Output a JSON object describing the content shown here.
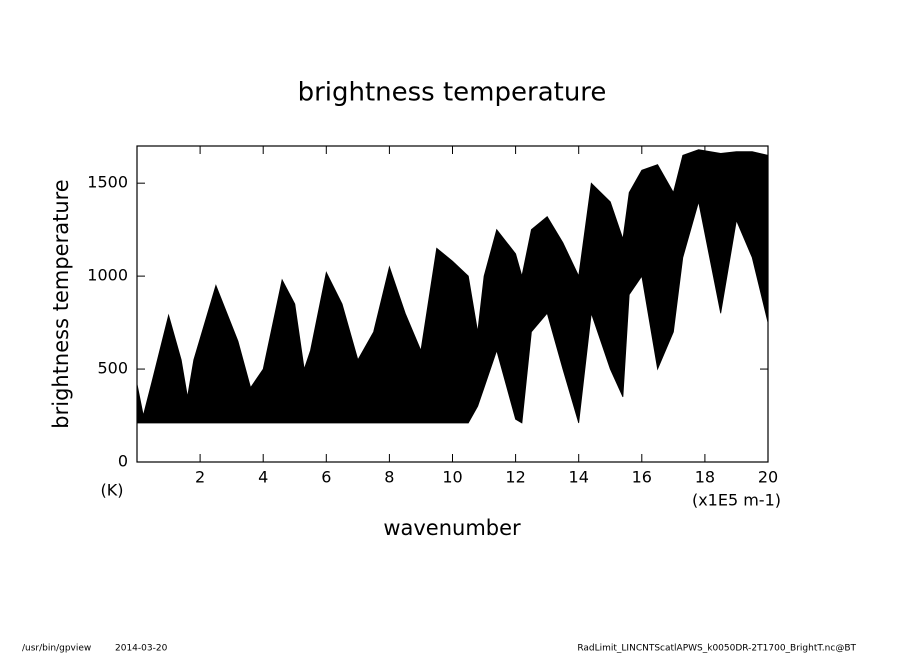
{
  "chart_data": {
    "type": "band",
    "title": "brightness temperature",
    "ylabel": "brightness temperature",
    "yunit": "(K)",
    "xlabel": "wavenumber",
    "xunit": "(x1E5 m-1)",
    "color": "#000000",
    "xlim": [
      0,
      20
    ],
    "xticks": [
      2,
      4,
      6,
      8,
      10,
      12,
      14,
      16,
      18,
      20
    ],
    "ylim": [
      0,
      1700
    ],
    "yticks": [
      0,
      500,
      1000,
      1500
    ],
    "x": [
      0,
      0.2,
      0.5,
      1,
      1.4,
      1.6,
      1.8,
      2.5,
      3.2,
      3.6,
      4,
      4.6,
      5,
      5.3,
      5.5,
      6,
      6.5,
      7,
      7.5,
      8,
      8.5,
      9,
      9.5,
      10,
      10.5,
      10.8,
      11,
      11.4,
      12,
      12.2,
      12.5,
      13,
      13.5,
      14,
      14.4,
      15,
      15.4,
      15.6,
      16,
      16.5,
      17,
      17.3,
      17.8,
      18.5,
      19,
      19.5,
      20
    ],
    "high": [
      420,
      250,
      450,
      790,
      550,
      350,
      550,
      950,
      650,
      400,
      500,
      980,
      850,
      500,
      600,
      1020,
      850,
      550,
      700,
      1050,
      800,
      600,
      1150,
      1080,
      1000,
      700,
      1000,
      1250,
      1120,
      1000,
      1250,
      1320,
      1180,
      1000,
      1500,
      1400,
      1200,
      1450,
      1570,
      1600,
      1450,
      1650,
      1680,
      1660,
      1670,
      1670,
      1650
    ],
    "low": [
      210,
      210,
      210,
      210,
      210,
      210,
      210,
      210,
      210,
      210,
      210,
      210,
      210,
      210,
      210,
      210,
      210,
      210,
      210,
      210,
      210,
      210,
      210,
      210,
      210,
      300,
      400,
      600,
      230,
      210,
      700,
      800,
      500,
      210,
      800,
      500,
      350,
      900,
      1000,
      500,
      700,
      1100,
      1400,
      800,
      1300,
      1100,
      750
    ]
  },
  "footer": {
    "program": "/usr/bin/gpview",
    "date": "2014-03-20",
    "file": "RadLimit_LINCNTScatlAPWS_k0050DR-2T1700_BrightT.nc@BT"
  }
}
